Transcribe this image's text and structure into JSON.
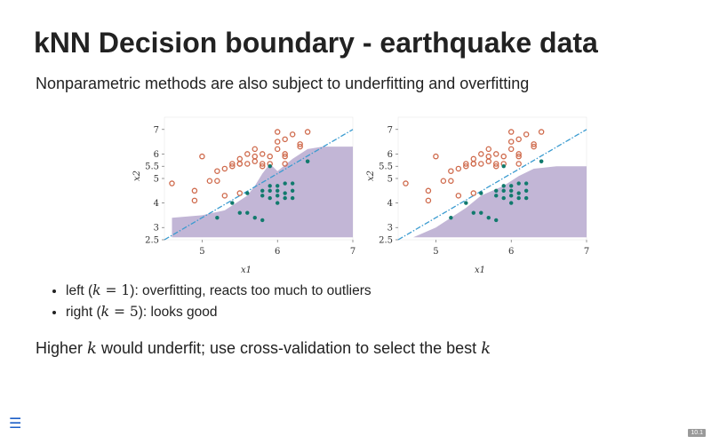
{
  "slide": {
    "title": "kNN Decision boundary - earthquake data",
    "subtitle": "Nonparametric methods are also subject to underfitting and overfitting",
    "bullets": [
      {
        "prefix": "left (",
        "math_lhs": "k",
        "math_eq": " = ",
        "math_rhs": "1",
        "suffix": "): overfitting, reacts too much to outliers"
      },
      {
        "prefix": "right (",
        "math_lhs": "k",
        "math_eq": " = ",
        "math_rhs": "5",
        "suffix": "): looks good"
      }
    ],
    "closing": {
      "part1": "Higher ",
      "k1": "k",
      "part2": " would underfit; use cross-validation to select the best ",
      "k2": "k"
    },
    "page_number": "10.1",
    "menu_icon": "hamburger-menu-icon"
  },
  "colors": {
    "class_a_point": "#cf6a4c",
    "class_b_point": "#117a6d",
    "region_fill": "#b7a9cf",
    "linear_boundary": "#3a9bd0"
  },
  "chart_data": [
    {
      "type": "scatter",
      "panel": "left",
      "xlabel": "x1",
      "ylabel": "x2",
      "xlim": [
        4.5,
        7.0
      ],
      "ylim": [
        2.5,
        7.5
      ],
      "xticks": [
        5,
        6,
        7
      ],
      "yticks": [
        2.5,
        3,
        4,
        5,
        5.5,
        6,
        7
      ],
      "linear_boundary": [
        [
          4.5,
          2.5
        ],
        [
          7.0,
          7.0
        ]
      ],
      "region": [
        [
          4.6,
          3.4
        ],
        [
          5.0,
          3.5
        ],
        [
          5.3,
          3.7
        ],
        [
          5.45,
          4.0
        ],
        [
          5.6,
          4.3
        ],
        [
          5.7,
          4.7
        ],
        [
          5.8,
          5.2
        ],
        [
          5.9,
          5.6
        ],
        [
          6.0,
          5.3
        ],
        [
          6.2,
          5.8
        ],
        [
          6.4,
          6.2
        ],
        [
          6.6,
          6.3
        ],
        [
          7.0,
          6.3
        ],
        [
          7.0,
          5.2
        ],
        [
          6.6,
          5.2
        ],
        [
          6.4,
          5.3
        ],
        [
          6.15,
          5.4
        ],
        [
          6.3,
          5.6
        ],
        [
          6.55,
          5.75
        ],
        [
          6.8,
          5.8
        ],
        [
          7.0,
          5.8
        ],
        [
          7.0,
          2.6
        ],
        [
          4.6,
          2.6
        ]
      ],
      "series": [
        {
          "color": "#cf6a4c",
          "x": [
            4.6,
            4.9,
            4.9,
            5.0,
            5.1,
            5.2,
            5.3,
            5.3,
            5.4,
            5.4,
            5.5,
            5.5,
            5.5,
            5.6,
            5.6,
            5.7,
            5.7,
            5.7,
            5.8,
            5.8,
            5.8,
            5.9,
            6.0,
            6.0,
            6.0,
            6.1,
            6.1,
            6.1,
            6.2,
            6.3,
            6.3,
            6.4,
            6.1,
            5.9,
            5.2,
            5.5
          ],
          "y": [
            4.8,
            4.5,
            4.1,
            5.9,
            4.9,
            5.3,
            5.4,
            4.3,
            5.5,
            5.6,
            5.8,
            5.6,
            4.4,
            6.0,
            5.6,
            5.7,
            5.9,
            6.2,
            5.5,
            5.6,
            6.0,
            5.9,
            6.9,
            6.5,
            6.2,
            6.0,
            6.6,
            5.9,
            6.8,
            6.3,
            6.4,
            6.9,
            5.6,
            5.6,
            4.9,
            5.6
          ]
        },
        {
          "color": "#117a6d",
          "x": [
            5.2,
            5.4,
            5.5,
            5.6,
            5.8,
            5.8,
            5.8,
            5.9,
            5.9,
            5.9,
            6.0,
            6.0,
            6.0,
            6.0,
            6.1,
            6.1,
            6.1,
            6.2,
            6.2,
            6.2,
            5.7,
            5.9,
            6.4,
            6.4,
            5.6
          ],
          "y": [
            3.4,
            4.0,
            3.6,
            3.6,
            3.3,
            4.3,
            4.5,
            4.2,
            4.5,
            4.7,
            4.0,
            4.3,
            4.5,
            4.7,
            4.2,
            4.4,
            4.8,
            4.2,
            4.5,
            4.8,
            3.4,
            5.5,
            5.7,
            5.7,
            4.4
          ]
        }
      ]
    },
    {
      "type": "scatter",
      "panel": "right",
      "xlabel": "x1",
      "ylabel": "x2",
      "xlim": [
        4.5,
        7.0
      ],
      "ylim": [
        2.5,
        7.5
      ],
      "xticks": [
        5,
        6,
        7
      ],
      "yticks": [
        2.5,
        3,
        4,
        5,
        5.5,
        6,
        7
      ],
      "linear_boundary": [
        [
          4.5,
          2.5
        ],
        [
          7.0,
          7.0
        ]
      ],
      "region": [
        [
          4.7,
          2.6
        ],
        [
          5.0,
          3.0
        ],
        [
          5.4,
          3.8
        ],
        [
          5.6,
          4.3
        ],
        [
          5.9,
          4.7
        ],
        [
          6.1,
          5.1
        ],
        [
          6.3,
          5.4
        ],
        [
          6.6,
          5.5
        ],
        [
          7.0,
          5.5
        ],
        [
          7.0,
          2.6
        ]
      ],
      "series": [
        {
          "color": "#cf6a4c",
          "x": [
            4.6,
            4.9,
            4.9,
            5.0,
            5.1,
            5.2,
            5.3,
            5.3,
            5.4,
            5.4,
            5.5,
            5.5,
            5.5,
            5.6,
            5.6,
            5.7,
            5.7,
            5.7,
            5.8,
            5.8,
            5.8,
            5.9,
            6.0,
            6.0,
            6.0,
            6.1,
            6.1,
            6.1,
            6.2,
            6.3,
            6.3,
            6.4,
            6.1,
            5.9,
            5.2,
            5.5
          ],
          "y": [
            4.8,
            4.5,
            4.1,
            5.9,
            4.9,
            5.3,
            5.4,
            4.3,
            5.5,
            5.6,
            5.8,
            5.6,
            4.4,
            6.0,
            5.6,
            5.7,
            5.9,
            6.2,
            5.5,
            5.6,
            6.0,
            5.9,
            6.9,
            6.5,
            6.2,
            6.0,
            6.6,
            5.9,
            6.8,
            6.3,
            6.4,
            6.9,
            5.6,
            5.6,
            4.9,
            5.6
          ]
        },
        {
          "color": "#117a6d",
          "x": [
            5.2,
            5.4,
            5.5,
            5.6,
            5.8,
            5.8,
            5.8,
            5.9,
            5.9,
            5.9,
            6.0,
            6.0,
            6.0,
            6.0,
            6.1,
            6.1,
            6.1,
            6.2,
            6.2,
            6.2,
            5.7,
            5.9,
            6.4,
            6.4,
            5.6
          ],
          "y": [
            3.4,
            4.0,
            3.6,
            3.6,
            3.3,
            4.3,
            4.5,
            4.2,
            4.5,
            4.7,
            4.0,
            4.3,
            4.5,
            4.7,
            4.2,
            4.4,
            4.8,
            4.2,
            4.5,
            4.8,
            3.4,
            5.5,
            5.7,
            5.7,
            4.4
          ]
        }
      ]
    }
  ]
}
